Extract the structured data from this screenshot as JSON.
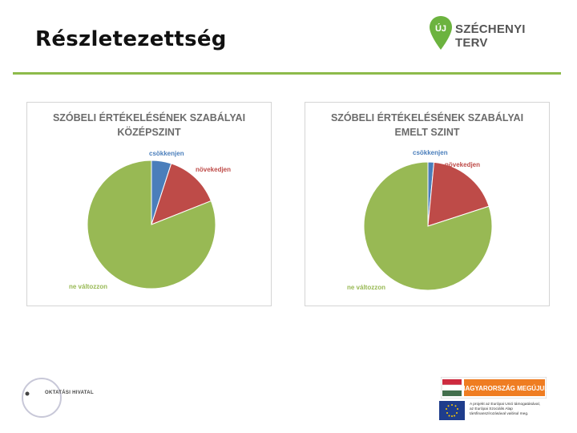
{
  "slide": {
    "title": "Részletezettség"
  },
  "logo": {
    "text": "SZÉCHENYI TERV",
    "mark": "ÚJ",
    "icon": "pin-icon",
    "color": "#6cb33f"
  },
  "colors": {
    "accent": "#8dbb4a",
    "slice_csokkenjen": "#4a7ebb",
    "slice_novekedjen": "#be4b48",
    "slice_ne_valtozzon": "#98b954"
  },
  "chart_data": [
    {
      "type": "pie",
      "title": "SZÓBELI ÉRTÉKELÉSÉNEK SZABÁLYAI KÖZÉPSZINT",
      "title_lines": [
        "SZÓBELI ÉRTÉKELÉSÉNEK SZABÁLYAI",
        "KÖZÉPSZINT"
      ],
      "categories": [
        "csökkenjen",
        "növekedjen",
        "ne változzon"
      ],
      "values": [
        5,
        14,
        81
      ],
      "legend": "labels-outside"
    },
    {
      "type": "pie",
      "title": "SZÓBELI ÉRTÉKELÉSÉNEK SZABÁLYAI EMELT SZINT",
      "title_lines": [
        "SZÓBELI ÉRTÉKELÉSÉNEK SZABÁLYAI",
        "EMELT SZINT"
      ],
      "categories": [
        "csökkenjen",
        "növekedjen",
        "ne változzon"
      ],
      "values": [
        1.5,
        18.5,
        80
      ],
      "legend": "labels-outside"
    }
  ],
  "footer": {
    "seal_text": "OKTATÁSI HIVATAL",
    "badge_text": "MAGYARORSZÁG MEGÚJUL",
    "eu_text": [
      "A projekt az Európai Unió támogatásával,",
      "az Európai Szociális Alap",
      "társfinanszírozásával valósul meg."
    ]
  }
}
